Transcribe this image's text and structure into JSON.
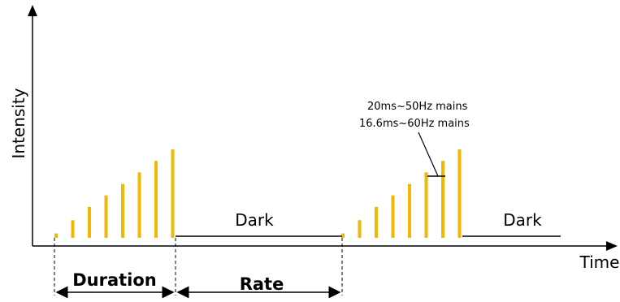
{
  "diagram": {
    "axis": {
      "y_label": "Intensity",
      "x_label": "Time"
    },
    "bursts": [
      {
        "pulses": 8,
        "relative_heights": [
          0.05,
          0.2,
          0.35,
          0.48,
          0.61,
          0.74,
          0.87,
          1.0
        ]
      },
      {
        "pulses": 8,
        "relative_heights": [
          0.05,
          0.2,
          0.35,
          0.48,
          0.61,
          0.74,
          0.87,
          1.0
        ]
      }
    ],
    "labels": {
      "dark_1": "Dark",
      "dark_2": "Dark",
      "duration": "Duration",
      "rate": "Rate"
    },
    "annotation": {
      "line1": "20ms~50Hz mains",
      "line2": "16.6ms~60Hz mains"
    },
    "colors": {
      "pulse": "#f2b705",
      "line": "#000000"
    }
  }
}
